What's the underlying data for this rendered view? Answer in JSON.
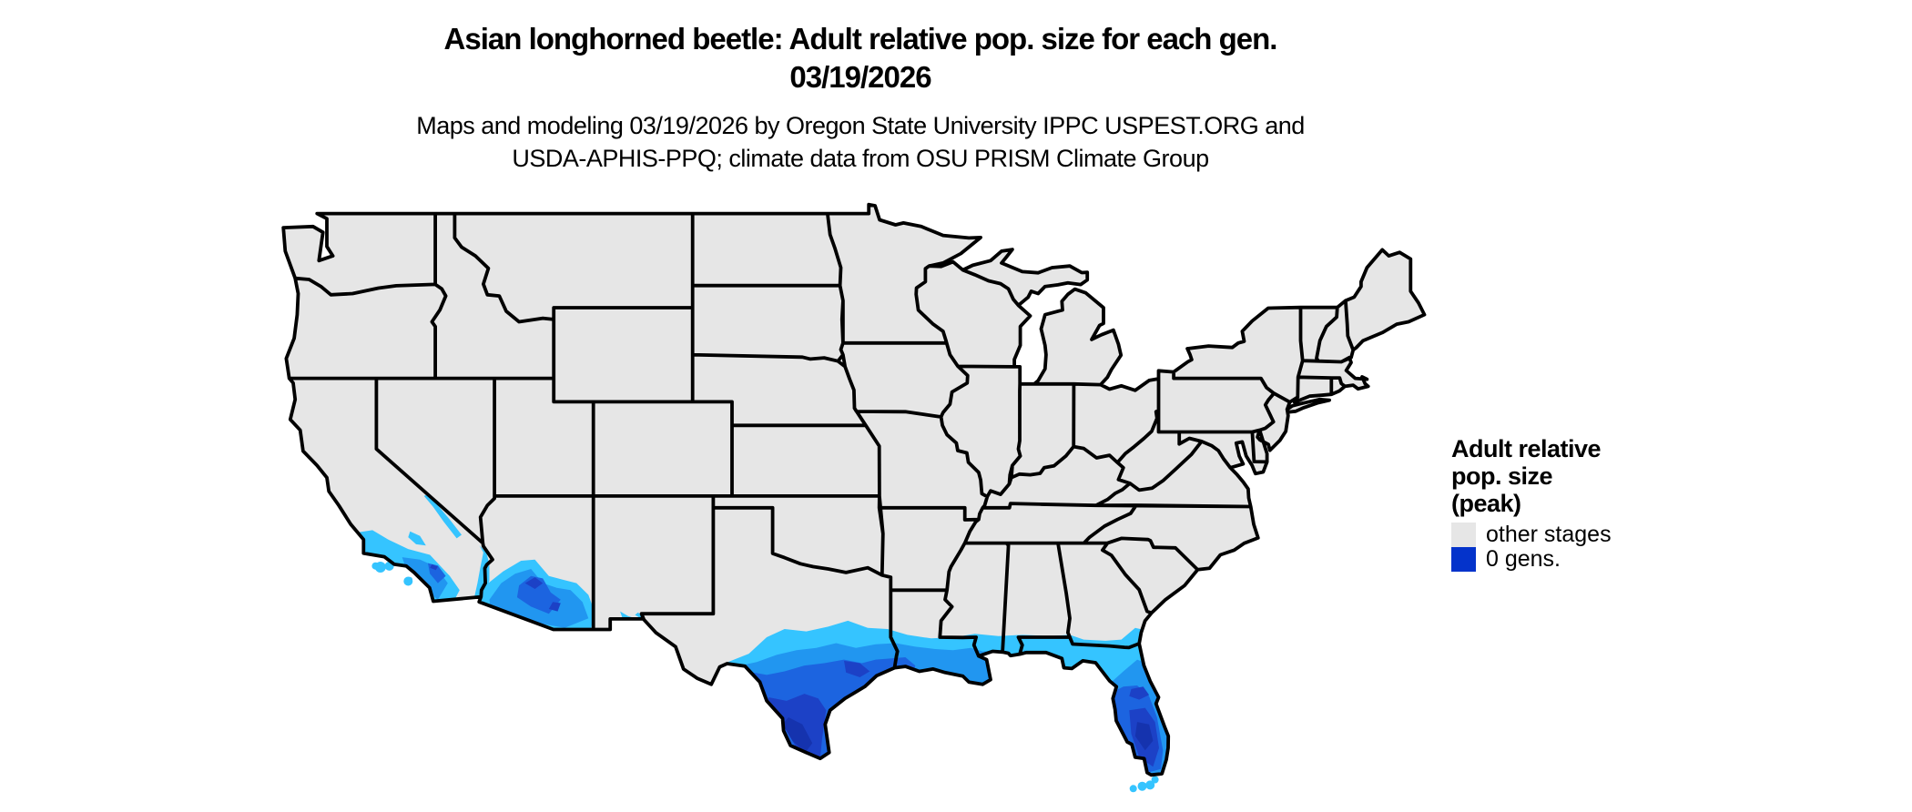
{
  "title": {
    "line1": "Asian longhorned beetle: Adult relative pop. size for each gen.",
    "line2": "03/19/2026"
  },
  "subtitle": {
    "line1": "Maps and modeling 03/19/2026 by Oregon State University IPPC USPEST.ORG and",
    "line2": "USDA-APHIS-PPQ; climate data from OSU PRISM Climate Group"
  },
  "legend": {
    "title_lines": [
      "Adult relative",
      "pop. size",
      "(peak)"
    ],
    "items": [
      {
        "label": "other stages",
        "color": "#e6e6e6"
      },
      {
        "label": "0 gens.",
        "color": "#0433cb"
      }
    ]
  },
  "map": {
    "background": "#ffffff",
    "land_fill": "#e6e6e6",
    "border_color": "#000000",
    "heat_ramp": [
      "#35c4ff",
      "#2196f0",
      "#1c64e0",
      "#1c41c6",
      "#1533ae"
    ]
  }
}
